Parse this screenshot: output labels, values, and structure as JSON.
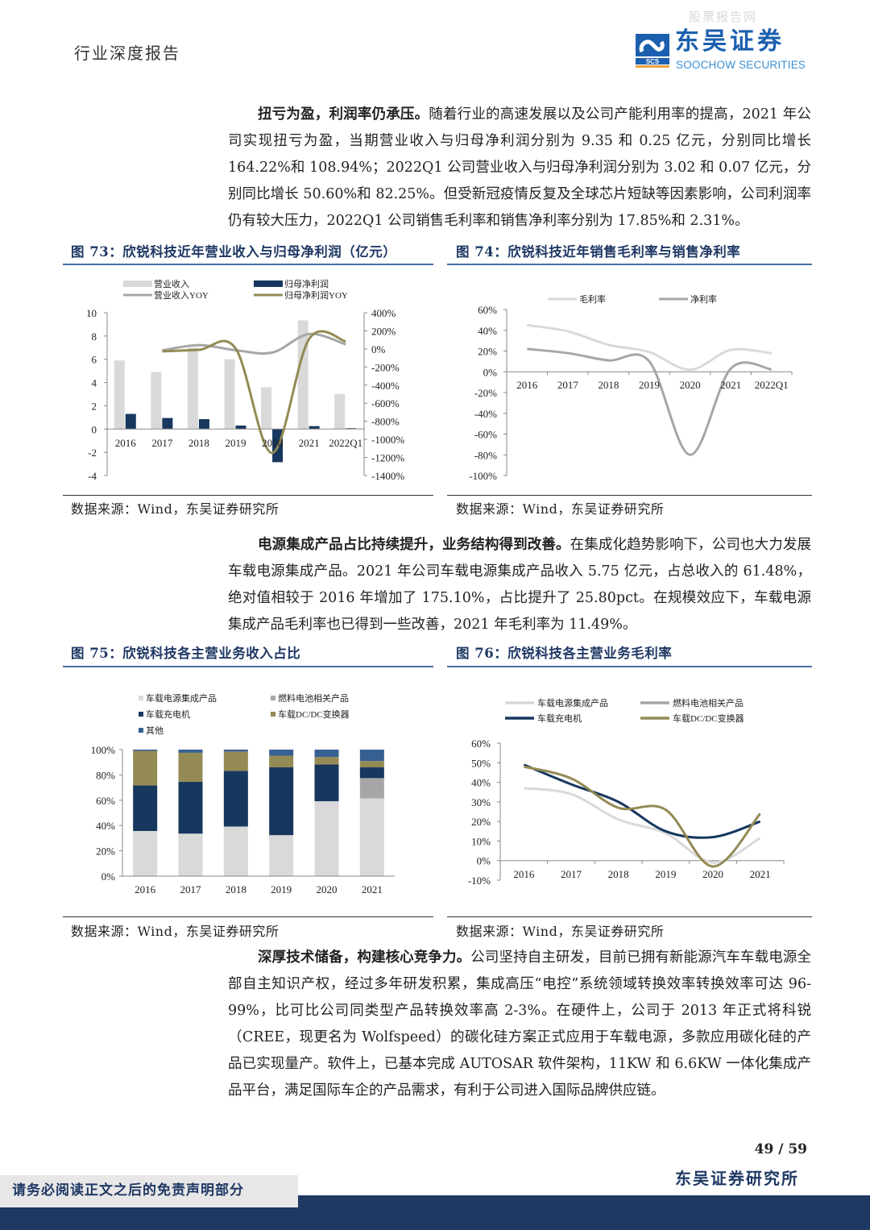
{
  "header": {
    "title": "行业深度报告",
    "watermark": "股票报告网",
    "logo_cn": "东吴证券",
    "logo_en": "SOOCHOW SECURITIES",
    "logo_abbr": "SCS",
    "brand_color": "#1b5fae"
  },
  "paragraphs": [
    {
      "lead": "扭亏为盈，利润率仍承压。",
      "body": "随着行业的高速发展以及公司产能利用率的提高，2021 年公司实现扭亏为盈，当期营业收入与归母净利润分别为 9.35 和 0.25 亿元，分别同比增长 164.22%和 108.94%；2022Q1 公司营业收入与归母净利润分别为 3.02 和 0.07 亿元，分别同比增长 50.60%和 82.25%。但受新冠疫情反复及全球芯片短缺等因素影响，公司利润率仍有较大压力，2022Q1 公司销售毛利率和销售净利率分别为 17.85%和 2.31%。"
    },
    {
      "lead": "电源集成产品占比持续提升，业务结构得到改善。",
      "body": "在集成化趋势影响下，公司也大力发展车载电源集成产品。2021 年公司车载电源集成产品收入 5.75 亿元，占总收入的 61.48%，绝对值相较于 2016 年增加了 175.10%，占比提升了 25.80pct。在规模效应下，车载电源集成产品毛利率也已得到一些改善，2021 年毛利率为 11.49%。"
    },
    {
      "lead": "深厚技术储备，构建核心竞争力。",
      "body": "公司坚持自主研发，目前已拥有新能源汽车车载电源全部自主知识产权，经过多年研发积累，集成高压“电控”系统领域转换效率转换效率可达 96-99%，比可比公司同类型产品转换效率高 2-3%。在硬件上，公司于 2013 年正式将科锐（CREE，现更名为 Wolfspeed）的碳化硅方案正式应用于车载电源，多款应用碳化硅的产品已实现量产。软件上，已基本完成 AUTOSAR 软件架构，11KW 和 6.6KW 一体化集成产品平台，满足国际车企的产品需求，有利于公司进入国际品牌供应链。"
    }
  ],
  "figures": [
    {
      "title": "图 73：欣锐科技近年营业收入与归母净利润（亿元）",
      "source": "数据来源：Wind，东吴证券研究所"
    },
    {
      "title": "图 74：欣锐科技近年销售毛利率与销售净利率",
      "source": "数据来源：Wind，东吴证券研究所"
    },
    {
      "title": "图 75：欣锐科技各主营业务收入占比",
      "source": "数据来源：Wind，东吴证券研究所"
    },
    {
      "title": "图 76：欣锐科技各主营业务毛利率",
      "source": "数据来源：Wind，东吴证券研究所"
    }
  ],
  "chart_data": [
    {
      "type": "bar+line",
      "categories": [
        "2016",
        "2017",
        "2018",
        "2019",
        "2020",
        "2021",
        "2022Q1"
      ],
      "left_ticks": [
        "10",
        "8",
        "6",
        "4",
        "2",
        "0",
        "-2",
        "-4"
      ],
      "right_ticks": [
        "400%",
        "200%",
        "0%",
        "-200%",
        "-400%",
        "-600%",
        "-800%",
        "-1000%",
        "-1200%",
        "-1400%"
      ],
      "ylim_left": [
        -4,
        10
      ],
      "ylim_right": [
        -1400,
        400
      ],
      "legend_position": "top",
      "series": [
        {
          "name": "营业收入",
          "kind": "bar",
          "axis": "left",
          "color": "#d9d9d9",
          "values": [
            5.9,
            4.9,
            7.0,
            6.0,
            3.6,
            9.35,
            3.02
          ]
        },
        {
          "name": "归母净利润",
          "kind": "bar",
          "axis": "left",
          "color": "#17375e",
          "values": [
            1.3,
            0.95,
            0.85,
            0.3,
            -2.85,
            0.25,
            0.07
          ]
        },
        {
          "name": "营业收入YOY",
          "kind": "line",
          "axis": "right",
          "color": "#a6a6a6",
          "values": [
            null,
            -17,
            42,
            -14,
            -40,
            164.22,
            50.6
          ]
        },
        {
          "name": "归母净利润YOY",
          "kind": "line",
          "axis": "right",
          "color": "#948a54",
          "values": [
            null,
            -27,
            -10,
            5,
            -1150,
            108.94,
            82.25
          ]
        }
      ]
    },
    {
      "type": "line",
      "categories": [
        "2016",
        "2017",
        "2018",
        "2019",
        "2020",
        "2021",
        "2022Q1"
      ],
      "ticks": [
        "60%",
        "40%",
        "20%",
        "0%",
        "-20%",
        "-40%",
        "-60%",
        "-80%",
        "-100%"
      ],
      "ylim": [
        -100,
        60
      ],
      "legend_position": "top",
      "series": [
        {
          "name": "毛利率",
          "color": "#d9d9d9",
          "values": [
            45,
            39,
            26,
            19,
            2,
            21,
            17.85
          ]
        },
        {
          "name": "净利率",
          "color": "#a6a6a6",
          "values": [
            22,
            18,
            11,
            10,
            -80,
            3,
            2.31
          ]
        }
      ]
    },
    {
      "type": "stacked-bar",
      "categories": [
        "2016",
        "2017",
        "2018",
        "2019",
        "2020",
        "2021"
      ],
      "ticks": [
        "100%",
        "80%",
        "60%",
        "40%",
        "20%",
        "0%"
      ],
      "ylim": [
        0,
        100
      ],
      "legend_position": "top",
      "series": [
        {
          "name": "车载电源集成产品",
          "color": "#d9d9d9",
          "values": [
            35.7,
            33.6,
            39.2,
            32.4,
            59.2,
            61.48
          ]
        },
        {
          "name": "燃料电池相关产品",
          "color": "#a6a6a6",
          "values": [
            0,
            0,
            0,
            0,
            0,
            16
          ]
        },
        {
          "name": "车载充电机",
          "color": "#17375e",
          "values": [
            36,
            41,
            44,
            53.6,
            29,
            8.5
          ]
        },
        {
          "name": "车载DC/DC变换器",
          "color": "#948a54",
          "values": [
            27.3,
            22.9,
            15.3,
            9.2,
            6,
            5
          ]
        },
        {
          "name": "其他",
          "color": "#376092",
          "values": [
            1,
            2.5,
            1.5,
            4.8,
            5.8,
            9
          ]
        }
      ],
      "legend_order": [
        0,
        1,
        2,
        3,
        4
      ]
    },
    {
      "type": "line",
      "categories": [
        "2016",
        "2017",
        "2018",
        "2019",
        "2020",
        "2021"
      ],
      "ticks": [
        "60%",
        "50%",
        "40%",
        "30%",
        "20%",
        "10%",
        "0%",
        "-10%"
      ],
      "ylim": [
        -10,
        60
      ],
      "legend_position": "top",
      "series": [
        {
          "name": "车载电源集成产品",
          "color": "#d9d9d9",
          "values": [
            37,
            34,
            21,
            14,
            -1,
            11.49
          ]
        },
        {
          "name": "燃料电池相关产品",
          "color": "#a6a6a6",
          "values": [
            null,
            null,
            null,
            null,
            null,
            null
          ]
        },
        {
          "name": "车载充电机",
          "color": "#17375e",
          "values": [
            49,
            39,
            30,
            15,
            12,
            20
          ]
        },
        {
          "name": "车载DC/DC变换器",
          "color": "#948a54",
          "values": [
            48,
            42,
            27,
            26,
            -3,
            24
          ]
        }
      ]
    }
  ],
  "footer": {
    "page": "49 / 59",
    "disclaimer": "请务必阅读正文之后的免责声明部分",
    "org": "东吴证券研究所"
  }
}
